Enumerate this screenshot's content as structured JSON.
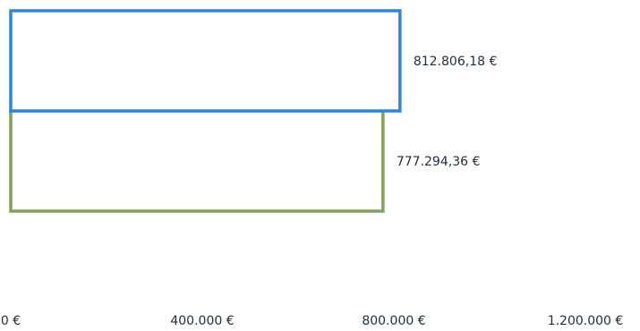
{
  "chart_data": {
    "type": "bar",
    "orientation": "horizontal",
    "series": [
      {
        "value": 812806.18,
        "value_label": "812.806,18 €",
        "color": "#2f86d6"
      },
      {
        "value": 777294.36,
        "value_label": "777.294,36 €",
        "color": "#7ca35a"
      }
    ],
    "x_ticks": [
      {
        "value": 0,
        "label": "0 €"
      },
      {
        "value": 400000,
        "label": "400.000 €"
      },
      {
        "value": 800000,
        "label": "800.000 €"
      },
      {
        "value": 1200000,
        "label": "1.200.000 €"
      }
    ],
    "xlim": [
      0,
      1200000
    ],
    "grid": false,
    "legend": "none"
  }
}
